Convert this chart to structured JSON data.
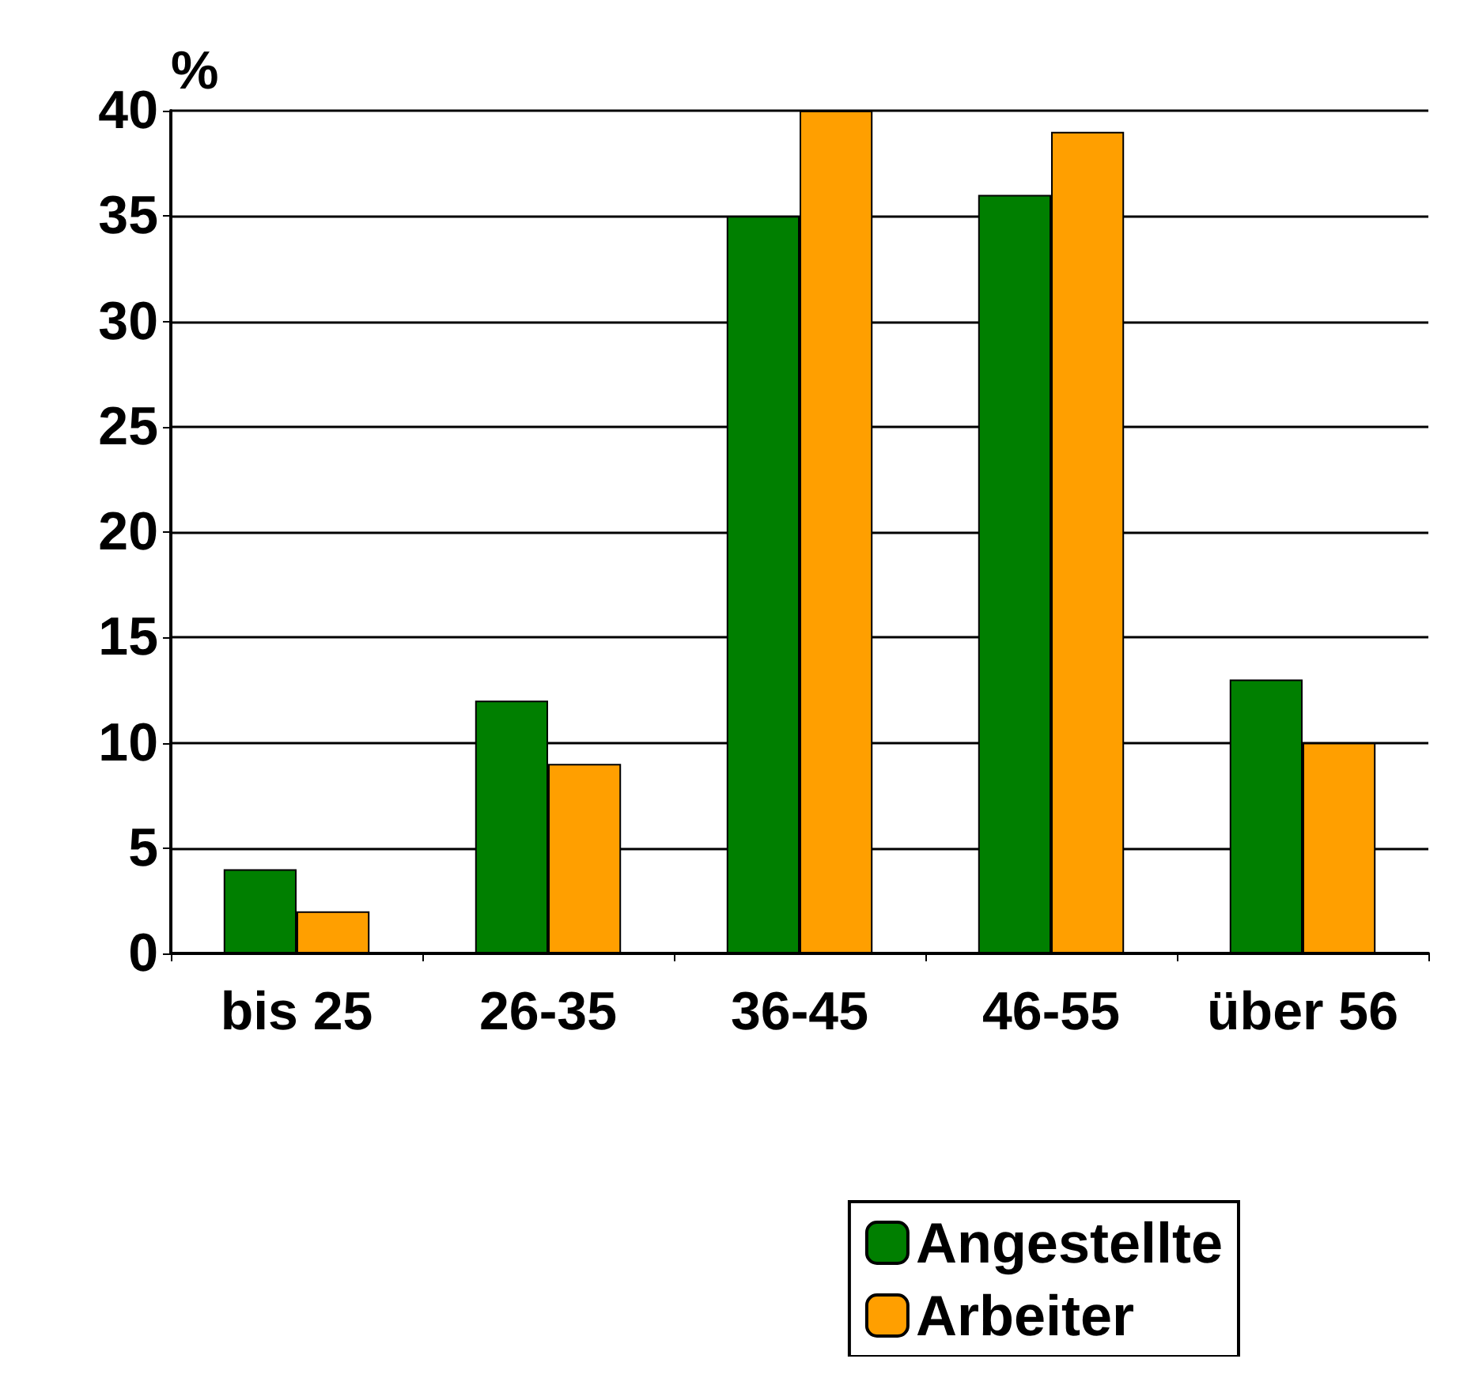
{
  "chart_data": {
    "type": "bar",
    "ylabel": "%",
    "categories": [
      "bis 25",
      "26-35",
      "36-45",
      "46-55",
      "über 56"
    ],
    "series": [
      {
        "name": "Angestellte",
        "color": "#007f00",
        "values": [
          4,
          12,
          35,
          36,
          13
        ]
      },
      {
        "name": "Arbeiter",
        "color": "#ff9f00",
        "values": [
          2,
          9,
          40,
          39,
          10
        ]
      }
    ],
    "ylim": [
      0,
      40
    ],
    "yticks": [
      0,
      5,
      10,
      15,
      20,
      25,
      30,
      35,
      40
    ],
    "grid": "y",
    "legend": "bottom right"
  }
}
